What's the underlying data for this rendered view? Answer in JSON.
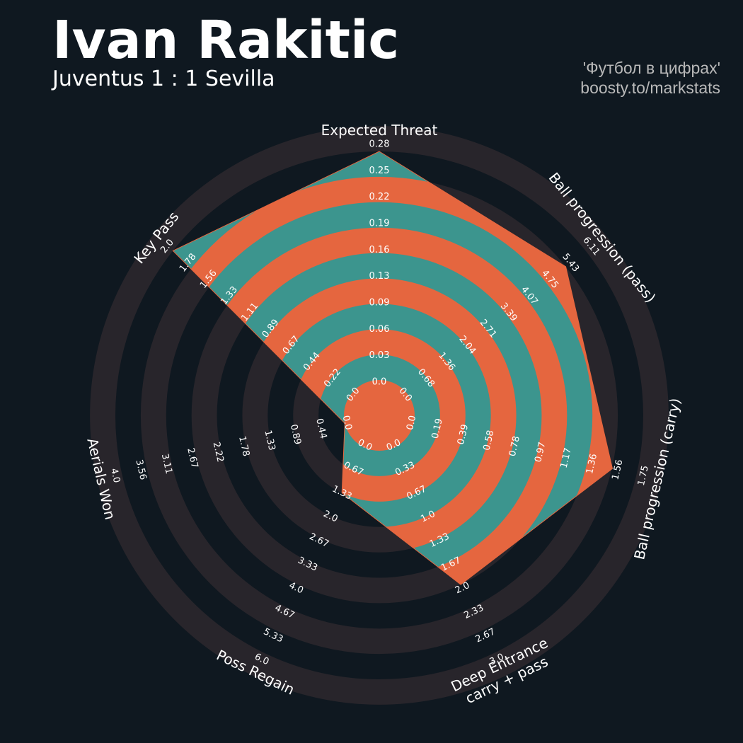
{
  "header": {
    "title": "Ivan Rakitic",
    "subtitle": "Juventus 1 : 1 Sevilla",
    "credit_line1": "'Футбол в цифрах'",
    "credit_line2": "boosty.to/markstats"
  },
  "colors": {
    "background": "#0f1820",
    "ring_dark": "#28252b",
    "polygon_fill": "#3c958e",
    "polygon_ring": "#e5663f",
    "text": "#ffffff"
  },
  "chart_data": {
    "type": "radar",
    "title": "Ivan Rakitic",
    "subtitle": "Juventus 1 : 1 Sevilla",
    "axes": [
      {
        "label": "Expected Threat",
        "max": 0.28,
        "ticks": [
          "0.0",
          "0.03",
          "0.06",
          "0.09",
          "0.13",
          "0.16",
          "0.19",
          "0.22",
          "0.25",
          "0.28"
        ]
      },
      {
        "label": "Ball progression (pass)",
        "max": 6.11,
        "ticks": [
          "0.0",
          "0.68",
          "1.36",
          "2.04",
          "2.71",
          "3.39",
          "4.07",
          "4.75",
          "5.43",
          "6.11"
        ]
      },
      {
        "label": "Ball progression (carry)",
        "max": 1.75,
        "ticks": [
          "0.0",
          "0.19",
          "0.39",
          "0.58",
          "0.78",
          "0.97",
          "1.17",
          "1.36",
          "1.56",
          "1.75"
        ]
      },
      {
        "label": "Deep Entrance\ncarry + pass",
        "max": 3.0,
        "ticks": [
          "0.0",
          "0.33",
          "0.67",
          "1.0",
          "1.33",
          "1.67",
          "2.0",
          "2.33",
          "2.67",
          "3.0"
        ]
      },
      {
        "label": "Poss Regain",
        "max": 6.0,
        "ticks": [
          "0.0",
          "0.67",
          "1.33",
          "2.0",
          "2.67",
          "3.33",
          "4.0",
          "4.67",
          "5.33",
          "6.0"
        ]
      },
      {
        "label": "Aerials Won",
        "max": 4.0,
        "ticks": [
          "0.0",
          "0.44",
          "0.89",
          "1.33",
          "1.78",
          "2.22",
          "2.67",
          "3.11",
          "3.56",
          "4.0"
        ]
      },
      {
        "label": "Key Pass",
        "max": 2.0,
        "ticks": [
          "0.0",
          "0.22",
          "0.44",
          "0.67",
          "0.89",
          "1.11",
          "1.33",
          "1.56",
          "1.78",
          "2.0"
        ]
      }
    ],
    "series": [
      {
        "values": [
          0.28,
          5.43,
          1.56,
          2.0,
          1.33,
          0.0,
          2.0
        ]
      }
    ]
  }
}
